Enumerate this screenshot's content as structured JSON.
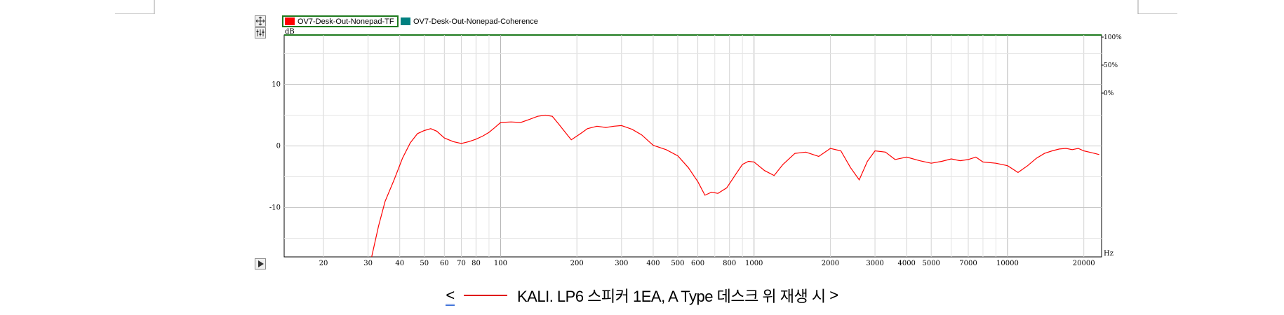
{
  "legend": [
    {
      "name": "OV7-Desk-Out-Nonepad-TF",
      "color": "#ff0000",
      "selected": true
    },
    {
      "name": "OV7-Desk-Out-Nonepad-Coherence",
      "color": "#008080",
      "selected": false
    }
  ],
  "caption": {
    "open": "<",
    "text": "KALI. LP6 스피커 1EA,  A Type 데스크 위 재생 시",
    "close": ">"
  },
  "icons": [
    "move-icon",
    "adjust-icon",
    "play-icon"
  ],
  "chart_data": {
    "type": "line",
    "x_scale": "log",
    "xlim": [
      14,
      23500
    ],
    "ylim": [
      -18,
      18
    ],
    "ylabel": "dB",
    "xlabel": "Hz",
    "y_ticks": [
      10,
      0,
      -10
    ],
    "y_tick_labels": [
      "10",
      "0",
      "-10"
    ],
    "x_ticks": [
      20,
      30,
      40,
      50,
      60,
      70,
      80,
      100,
      200,
      300,
      400,
      500,
      600,
      800,
      1000,
      2000,
      3000,
      4000,
      5000,
      7000,
      10000,
      20000
    ],
    "x_tick_labels": [
      "20",
      "30",
      "40",
      "50",
      "60",
      "70",
      "80",
      "100",
      "200",
      "300",
      "400",
      "500",
      "600",
      "800",
      "1000",
      "2000",
      "3000",
      "4000",
      "5000",
      "7000",
      "10000",
      "20000"
    ],
    "right_axis_ticks": [
      100,
      50,
      0
    ],
    "right_axis_tick_labels": [
      "100%",
      "50%",
      "0%"
    ],
    "grid": true,
    "series": [
      {
        "name": "OV7-Desk-Out-Nonepad-TF",
        "color": "#ff0000",
        "x": [
          31,
          33,
          35,
          38,
          41,
          44,
          47,
          50,
          53,
          56,
          60,
          65,
          70,
          75,
          80,
          85,
          90,
          95,
          100,
          110,
          120,
          130,
          140,
          150,
          160,
          170,
          180,
          190,
          200,
          210,
          220,
          240,
          260,
          280,
          300,
          330,
          360,
          400,
          450,
          500,
          550,
          600,
          640,
          680,
          720,
          780,
          850,
          900,
          950,
          1000,
          1100,
          1200,
          1300,
          1450,
          1600,
          1800,
          2000,
          2200,
          2400,
          2600,
          2800,
          3000,
          3300,
          3600,
          4000,
          4500,
          5000,
          5500,
          6000,
          6500,
          7000,
          7500,
          8000,
          9000,
          10000,
          11000,
          12000,
          13000,
          14000,
          15000,
          16000,
          17000,
          18000,
          19000,
          20000,
          21000,
          22000,
          23000
        ],
        "y": [
          -18,
          -13,
          -9,
          -5.5,
          -2,
          0.5,
          2,
          2.5,
          2.8,
          2.4,
          1.3,
          0.7,
          0.4,
          0.7,
          1.1,
          1.6,
          2.2,
          3.0,
          3.8,
          3.9,
          3.8,
          4.3,
          4.8,
          5.0,
          4.8,
          3.5,
          2.2,
          1.0,
          1.6,
          2.2,
          2.8,
          3.2,
          3.0,
          3.2,
          3.3,
          2.7,
          1.8,
          0.1,
          -0.6,
          -1.6,
          -3.5,
          -5.8,
          -8.0,
          -7.5,
          -7.7,
          -6.8,
          -4.5,
          -3.0,
          -2.5,
          -2.6,
          -4.0,
          -4.8,
          -3.0,
          -1.2,
          -1.0,
          -1.7,
          -0.4,
          -0.8,
          -3.5,
          -5.5,
          -2.5,
          -0.8,
          -1.0,
          -2.2,
          -1.8,
          -2.4,
          -2.8,
          -2.5,
          -2.1,
          -2.4,
          -2.2,
          -1.8,
          -2.6,
          -2.8,
          -3.2,
          -4.3,
          -3.2,
          -2.0,
          -1.2,
          -0.8,
          -0.5,
          -0.4,
          -0.6,
          -0.4,
          -0.8,
          -1.0,
          -1.2,
          -1.4
        ]
      },
      {
        "name": "OV7-Desk-Out-Nonepad-Coherence",
        "color": "#008080",
        "x": [],
        "y": []
      }
    ]
  }
}
